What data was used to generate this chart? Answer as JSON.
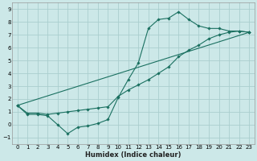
{
  "xlabel": "Humidex (Indice chaleur)",
  "bg_color": "#cce8e8",
  "grid_color": "#aacece",
  "line_color": "#1a7060",
  "xlim": [
    -0.5,
    23.5
  ],
  "ylim": [
    -1.5,
    9.5
  ],
  "xticks": [
    0,
    1,
    2,
    3,
    4,
    5,
    6,
    7,
    8,
    9,
    10,
    11,
    12,
    13,
    14,
    15,
    16,
    17,
    18,
    19,
    20,
    21,
    22,
    23
  ],
  "yticks": [
    -1,
    0,
    1,
    2,
    3,
    4,
    5,
    6,
    7,
    8,
    9
  ],
  "line1_x": [
    0,
    1,
    2,
    3,
    4,
    5,
    6,
    7,
    8,
    9,
    10,
    11,
    12,
    13,
    14,
    15,
    16,
    17,
    18,
    19,
    20,
    21,
    22,
    23
  ],
  "line1_y": [
    1.5,
    0.8,
    0.8,
    0.7,
    0.0,
    -0.7,
    -0.2,
    -0.1,
    0.1,
    0.4,
    2.1,
    3.5,
    4.8,
    7.5,
    8.2,
    8.3,
    8.8,
    8.2,
    7.7,
    7.5,
    7.5,
    7.3,
    7.3,
    7.2
  ],
  "line2_x": [
    0,
    1,
    2,
    3,
    4,
    5,
    6,
    7,
    8,
    9,
    10,
    11,
    12,
    13,
    14,
    15,
    16,
    17,
    18,
    19,
    20,
    21,
    22,
    23
  ],
  "line2_y": [
    1.5,
    0.9,
    0.9,
    0.8,
    0.9,
    1.0,
    1.1,
    1.2,
    1.3,
    1.4,
    2.2,
    2.7,
    3.1,
    3.5,
    4.0,
    4.5,
    5.3,
    5.8,
    6.2,
    6.7,
    7.0,
    7.2,
    7.3,
    7.2
  ],
  "line3_x": [
    0,
    23
  ],
  "line3_y": [
    1.5,
    7.2
  ]
}
